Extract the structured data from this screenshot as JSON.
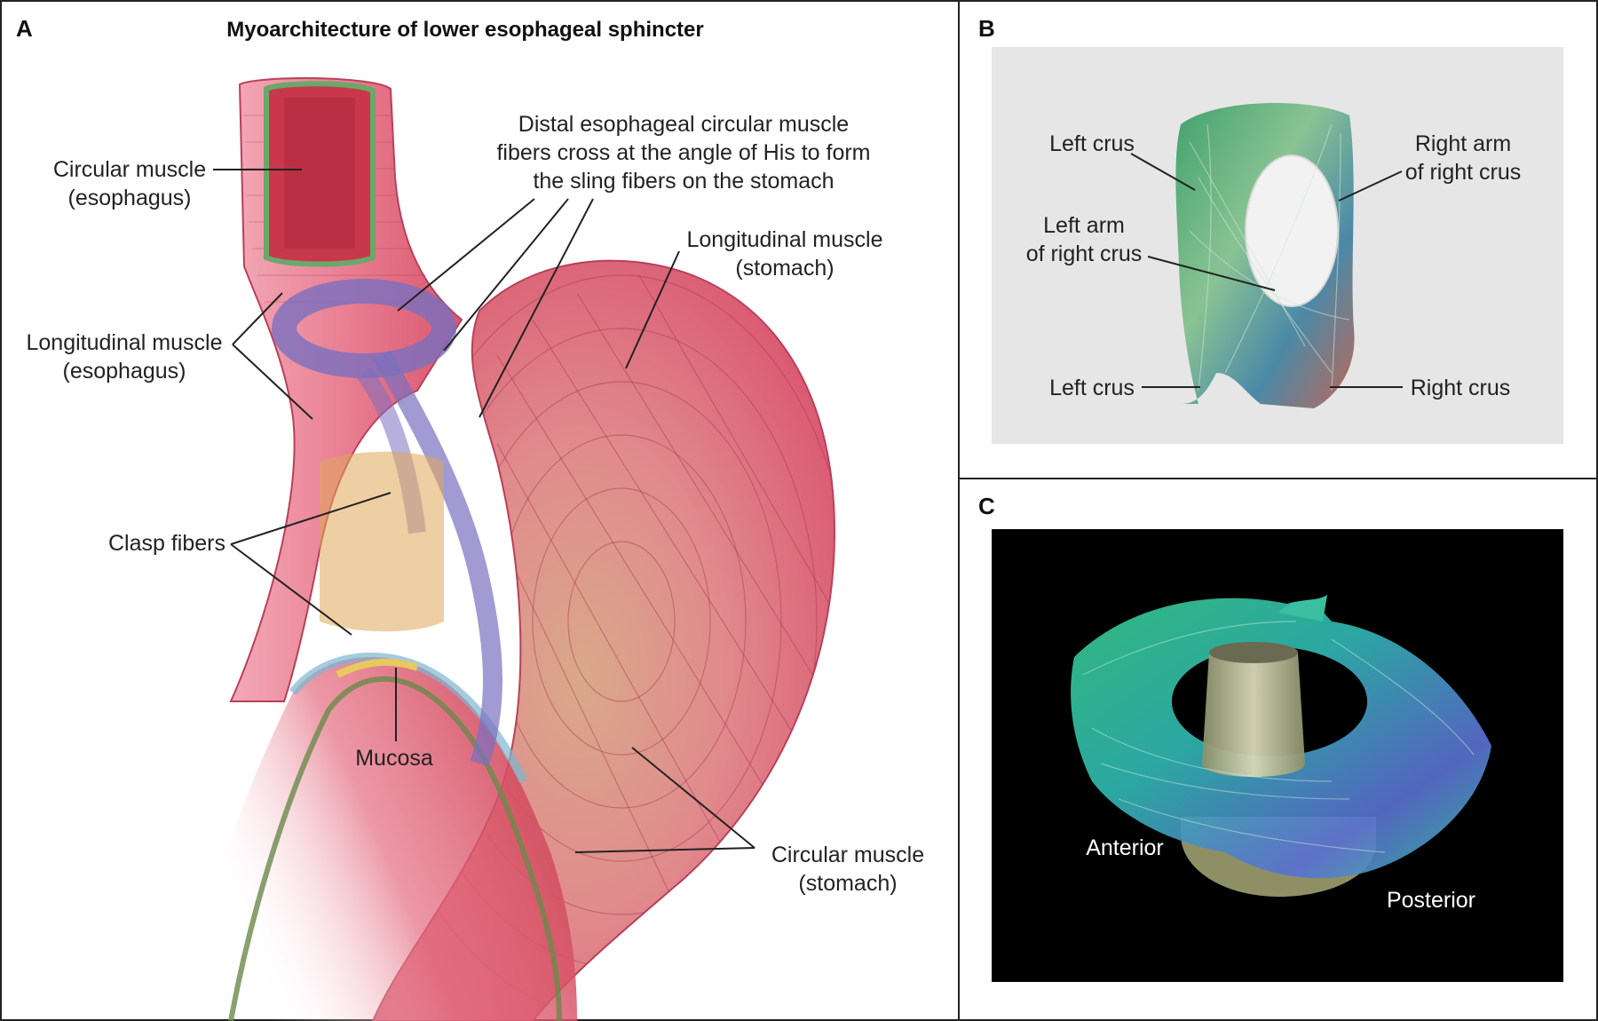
{
  "panelA": {
    "letter": "A",
    "title": "Myoarchitecture of lower esophageal sphincter",
    "labels": {
      "circular_esophagus_1": "Circular muscle",
      "circular_esophagus_2": "(esophagus)",
      "distal_1": "Distal esophageal circular muscle",
      "distal_2": "fibers cross at the angle of His to form",
      "distal_3": "the sling fibers on the stomach",
      "longitudinal_stomach_1": "Longitudinal muscle",
      "longitudinal_stomach_2": "(stomach)",
      "longitudinal_esophagus_1": "Longitudinal muscle",
      "longitudinal_esophagus_2": "(esophagus)",
      "clasp": "Clasp fibers",
      "mucosa": "Mucosa",
      "circular_stomach_1": "Circular muscle",
      "circular_stomach_2": "(stomach)"
    }
  },
  "panelB": {
    "letter": "B",
    "labels": {
      "left_crus_top": "Left crus",
      "right_arm_1": "Right arm",
      "right_arm_2": "of right crus",
      "left_arm_1": "Left arm",
      "left_arm_2": "of right crus",
      "left_crus_bottom": "Left crus",
      "right_crus": "Right crus"
    }
  },
  "panelC": {
    "letter": "C",
    "labels": {
      "anterior": "Anterior",
      "posterior": "Posterior"
    }
  },
  "colors": {
    "muscle_pink": "#e2607a",
    "muscle_light": "#f2a3b1",
    "sling_purple": "#7b6fbf",
    "clasp_orange": "#e0a85a",
    "mucosa_red": "#c8384a",
    "fiber_green": "#3fae7a",
    "panel_b_bg": "#e6e6e6",
    "panel_c_bg": "#000000"
  }
}
